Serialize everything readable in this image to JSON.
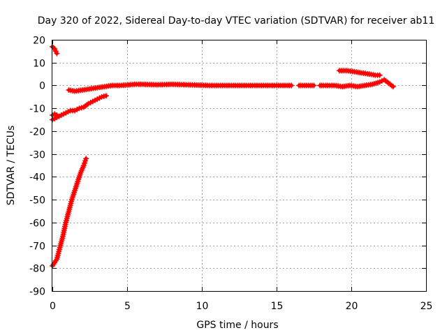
{
  "chart_data": {
    "type": "scatter",
    "title": "Day 320 of 2022, Sidereal Day-to-day VTEC variation (SDTVAR) for receiver ab11",
    "xlabel": "GPS time / hours",
    "ylabel": "SDTVAR / TECUs",
    "xlim": [
      0,
      25
    ],
    "ylim": [
      -90,
      20
    ],
    "xticks": [
      0,
      5,
      10,
      15,
      20,
      25
    ],
    "yticks": [
      -90,
      -80,
      -70,
      -60,
      -50,
      -40,
      -30,
      -20,
      -10,
      0,
      10,
      20
    ],
    "grid": true,
    "color": "#ff0000",
    "marker": "plus",
    "series": [
      {
        "name": "steep-ramp",
        "points": [
          [
            0.0,
            -79
          ],
          [
            0.3,
            -76
          ],
          [
            0.5,
            -71
          ],
          [
            0.7,
            -66
          ],
          [
            0.9,
            -60
          ],
          [
            1.1,
            -55
          ],
          [
            1.3,
            -50
          ],
          [
            1.5,
            -46
          ],
          [
            1.7,
            -42
          ],
          [
            1.9,
            -38
          ],
          [
            2.1,
            -35
          ],
          [
            2.25,
            -32
          ]
        ]
      },
      {
        "name": "lower-branch",
        "points": [
          [
            0.0,
            -15
          ],
          [
            0.3,
            -14
          ],
          [
            0.6,
            -13
          ],
          [
            0.9,
            -12
          ],
          [
            1.2,
            -11
          ],
          [
            1.5,
            -11
          ],
          [
            1.8,
            -10
          ],
          [
            2.1,
            -9.5
          ],
          [
            2.4,
            -8
          ],
          [
            2.7,
            -7
          ],
          [
            3.0,
            -6
          ],
          [
            3.3,
            -5
          ],
          [
            3.6,
            -4.5
          ]
        ]
      },
      {
        "name": "early-cluster",
        "points": [
          [
            0.0,
            -13
          ],
          [
            0.15,
            -12.5
          ],
          [
            0.3,
            -13
          ]
        ]
      },
      {
        "name": "start-high",
        "points": [
          [
            0.0,
            17
          ],
          [
            0.15,
            16
          ],
          [
            0.3,
            14
          ]
        ]
      },
      {
        "name": "main-segment",
        "points": [
          [
            1.1,
            -2
          ],
          [
            1.5,
            -2.5
          ],
          [
            2.0,
            -2
          ],
          [
            2.5,
            -1.5
          ],
          [
            3.0,
            -1
          ],
          [
            3.5,
            -0.5
          ],
          [
            4.0,
            0
          ],
          [
            4.5,
            0
          ],
          [
            5.0,
            0.2
          ],
          [
            5.5,
            0.5
          ],
          [
            6.0,
            0.5
          ],
          [
            6.5,
            0.4
          ],
          [
            7.0,
            0.3
          ],
          [
            7.5,
            0.4
          ],
          [
            8.0,
            0.5
          ],
          [
            8.5,
            0.4
          ],
          [
            9.0,
            0.3
          ],
          [
            9.5,
            0.2
          ],
          [
            10.0,
            0.1
          ],
          [
            10.5,
            0
          ],
          [
            11.0,
            0
          ],
          [
            11.5,
            0
          ],
          [
            12.0,
            0
          ],
          [
            12.5,
            0
          ],
          [
            13.0,
            0
          ],
          [
            13.5,
            0
          ],
          [
            14.0,
            0
          ],
          [
            14.5,
            0
          ],
          [
            15.0,
            0
          ],
          [
            15.5,
            0
          ],
          [
            16.0,
            0
          ]
        ]
      },
      {
        "name": "mid-segment",
        "points": [
          [
            16.5,
            0
          ],
          [
            17.0,
            0
          ],
          [
            17.5,
            0
          ]
        ]
      },
      {
        "name": "late-segment",
        "points": [
          [
            17.9,
            0
          ],
          [
            18.4,
            0
          ],
          [
            18.9,
            0
          ],
          [
            19.4,
            -0.5
          ],
          [
            19.9,
            0
          ],
          [
            20.4,
            -0.5
          ],
          [
            20.9,
            0
          ],
          [
            21.4,
            0.5
          ],
          [
            21.9,
            1.5
          ],
          [
            22.2,
            2.5
          ],
          [
            22.5,
            1
          ],
          [
            22.8,
            -0.5
          ]
        ]
      },
      {
        "name": "upper-late-branch",
        "points": [
          [
            19.2,
            6.5
          ],
          [
            19.7,
            6.5
          ],
          [
            20.2,
            6
          ],
          [
            20.7,
            5.5
          ],
          [
            21.2,
            5
          ],
          [
            21.6,
            4.5
          ],
          [
            21.9,
            4.5
          ]
        ]
      }
    ]
  }
}
